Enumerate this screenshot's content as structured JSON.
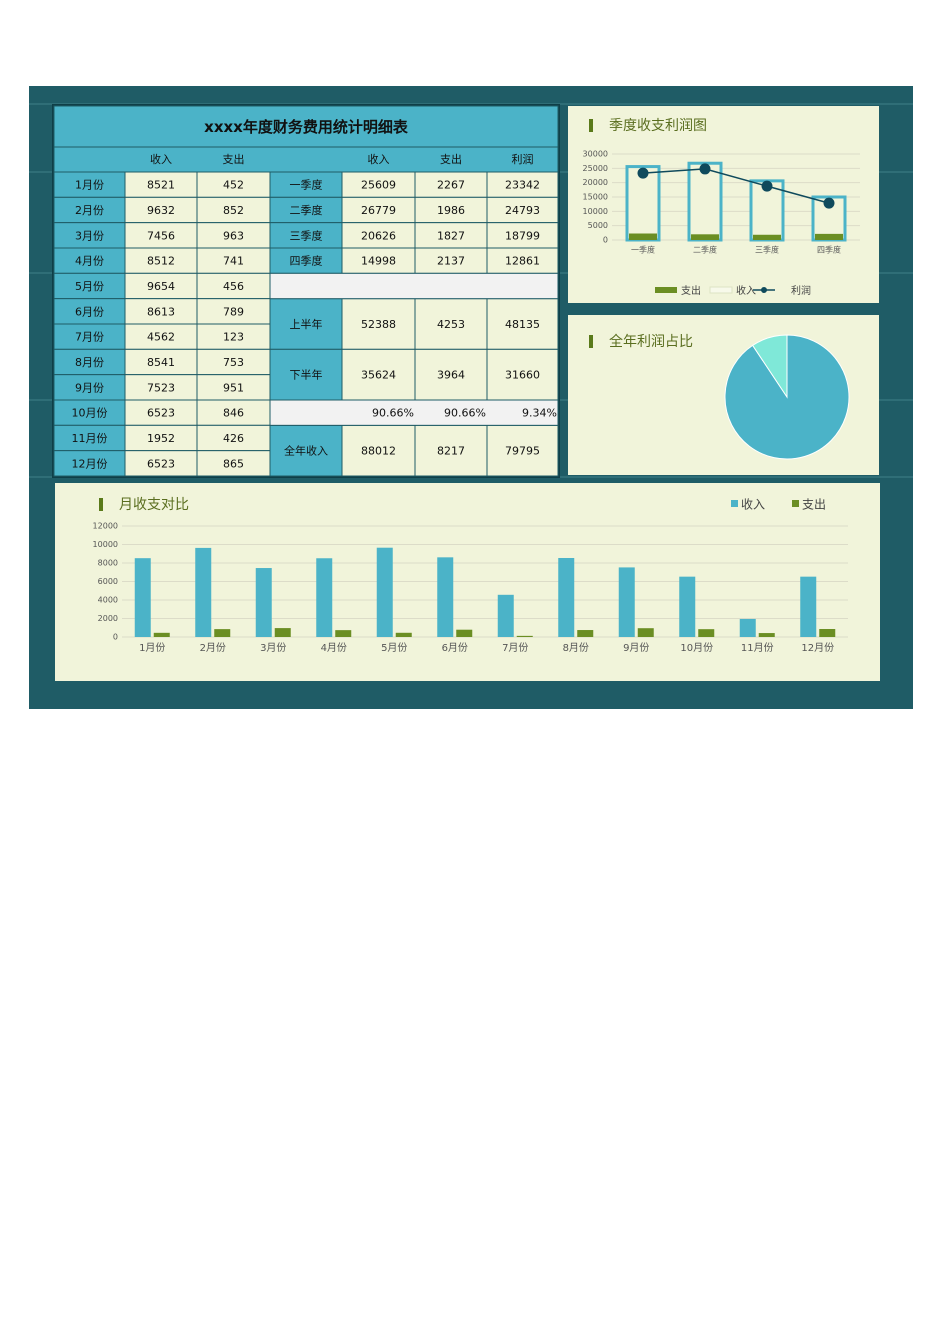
{
  "table": {
    "title": "xxxx年度财务费用统计明细表",
    "header_left": [
      "收入",
      "支出"
    ],
    "header_right": [
      "收入",
      "支出",
      "利润"
    ],
    "months": [
      [
        "1月份",
        8521,
        452
      ],
      [
        "2月份",
        9632,
        852
      ],
      [
        "3月份",
        7456,
        963
      ],
      [
        "4月份",
        8512,
        741
      ],
      [
        "5月份",
        9654,
        456
      ],
      [
        "6月份",
        8613,
        789
      ],
      [
        "7月份",
        4562,
        123
      ],
      [
        "8月份",
        8541,
        753
      ],
      [
        "9月份",
        7523,
        951
      ],
      [
        "10月份",
        6523,
        846
      ],
      [
        "11月份",
        1952,
        426
      ],
      [
        "12月份",
        6523,
        865
      ]
    ],
    "periods": [
      {
        "label": "一季度",
        "values": [
          25609,
          2267,
          23342
        ]
      },
      {
        "label": "二季度",
        "values": [
          26779,
          1986,
          24793
        ]
      },
      {
        "label": "三季度",
        "values": [
          20626,
          1827,
          18799
        ]
      },
      {
        "label": "四季度",
        "values": [
          14998,
          2137,
          12861
        ]
      },
      {
        "label": "上半年",
        "values": [
          52388,
          4253,
          48135
        ]
      },
      {
        "label": "下半年",
        "values": [
          35624,
          3964,
          31660
        ]
      },
      {
        "label": "全年收入",
        "values": [
          88012,
          8217,
          79795
        ]
      }
    ],
    "ratios": [
      "90.66%",
      "90.66%",
      "9.34%"
    ]
  },
  "chart_data": [
    {
      "type": "combo",
      "title": "季度收支利润图",
      "categories": [
        "一季度",
        "二季度",
        "三季度",
        "四季度"
      ],
      "series": [
        {
          "name": "支出",
          "style": "bar",
          "color": "#6b8e23",
          "values": [
            2267,
            1986,
            1827,
            2137
          ]
        },
        {
          "name": "收入",
          "style": "outline",
          "color": "#4bb3c8",
          "values": [
            25609,
            26779,
            20626,
            14998
          ]
        },
        {
          "name": "利润",
          "style": "line",
          "color": "#0f4a5c",
          "values": [
            23342,
            24793,
            18799,
            12861
          ]
        }
      ],
      "ylim": [
        0,
        30000
      ],
      "yticks": [
        0,
        5000,
        10000,
        15000,
        20000,
        25000,
        30000
      ],
      "grid": true,
      "legend": "bottom"
    },
    {
      "type": "pie",
      "title": "全年利润占比",
      "values": [
        90.66,
        9.34
      ],
      "colors": [
        "#4bb3c8",
        "#7fe8d8"
      ]
    },
    {
      "type": "bar",
      "title": "月收支对比",
      "categories": [
        "1月份",
        "2月份",
        "3月份",
        "4月份",
        "5月份",
        "6月份",
        "7月份",
        "8月份",
        "9月份",
        "10月份",
        "11月份",
        "12月份"
      ],
      "series": [
        {
          "name": "收入",
          "color": "#4bb3c8",
          "values": [
            8521,
            9632,
            7456,
            8512,
            9654,
            8613,
            4562,
            8541,
            7523,
            6523,
            1952,
            6523
          ]
        },
        {
          "name": "支出",
          "color": "#6b8e23",
          "values": [
            452,
            852,
            963,
            741,
            456,
            789,
            123,
            753,
            951,
            846,
            426,
            865
          ]
        }
      ],
      "ylim": [
        0,
        12000
      ],
      "yticks": [
        0,
        2000,
        4000,
        6000,
        8000,
        10000,
        12000
      ],
      "grid": true,
      "legend": "top-right"
    }
  ]
}
